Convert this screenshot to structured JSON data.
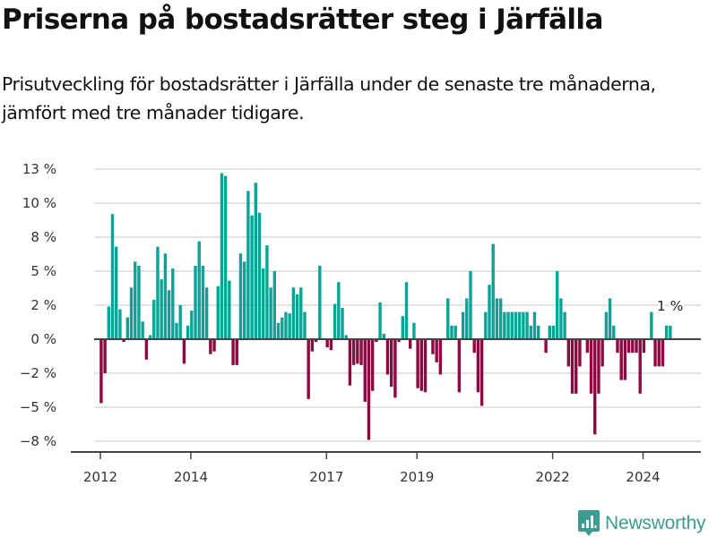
{
  "header": {
    "title": "Priserna på bostadsrätter steg i Järfälla",
    "subtitle": "Prisutveckling för bostadsrätter i Järfälla under de senaste tre månaderna, jämfört med tre månader tidigare."
  },
  "branding": {
    "logo_icon": "bar-chart-speech-bubble-icon",
    "name": "Newsworthy",
    "color": "#3c9c94"
  },
  "chart_data": {
    "type": "bar",
    "title": "Priserna på bostadsrätter steg i Järfälla",
    "xlabel": "",
    "ylabel": "",
    "unit": "%",
    "start_month": "2012-01",
    "frequency": "monthly",
    "ylim": [
      -9,
      13.5
    ],
    "y_ticks": [
      12.5,
      10,
      7.5,
      5,
      2.5,
      0,
      -2.5,
      -5,
      -7.5
    ],
    "y_tick_labels": [
      "13 %",
      "10 %",
      "8 %",
      "5 %",
      "2 %",
      "0 %",
      "−2 %",
      "−5 %",
      "−8 %"
    ],
    "x_ticks": [
      {
        "label": "2012",
        "month_index": 0
      },
      {
        "label": "2014",
        "month_index": 24
      },
      {
        "label": "2017",
        "month_index": 60
      },
      {
        "label": "2019",
        "month_index": 84
      },
      {
        "label": "2022",
        "month_index": 120
      },
      {
        "label": "2024",
        "month_index": 144
      }
    ],
    "grid": true,
    "colors": {
      "positive": "#0ba396",
      "negative": "#8c0a42",
      "grid": "#e2e2e2",
      "axis": "#444444"
    },
    "annotation": {
      "text": "1 %",
      "month_index": 151
    },
    "values": [
      -4.7,
      -2.5,
      2.4,
      9.2,
      6.8,
      2.2,
      -0.2,
      1.6,
      3.8,
      5.7,
      5.4,
      1.3,
      -1.5,
      0.3,
      2.9,
      6.8,
      4.4,
      6.3,
      3.6,
      5.2,
      1.2,
      2.5,
      -1.8,
      1.0,
      2.1,
      5.4,
      7.2,
      5.4,
      3.8,
      -1.1,
      -0.9,
      3.9,
      12.2,
      12.0,
      4.3,
      -1.9,
      -1.9,
      6.3,
      5.7,
      10.9,
      9.1,
      11.5,
      9.3,
      5.2,
      6.9,
      3.8,
      5.0,
      1.2,
      1.6,
      2.0,
      1.9,
      3.8,
      3.3,
      3.8,
      2.0,
      -4.4,
      -0.9,
      -0.2,
      5.4,
      0,
      -0.6,
      -0.8,
      2.6,
      4.2,
      2.3,
      0.3,
      -3.4,
      -1.9,
      -1.8,
      -1.9,
      -4.6,
      -7.4,
      -3.8,
      -0.2,
      2.7,
      0.4,
      -2.6,
      -3.5,
      -4.3,
      -0.2,
      1.7,
      4.2,
      -0.7,
      1.2,
      -3.6,
      -3.8,
      -3.9,
      0,
      -1.1,
      -1.7,
      -2.6,
      0,
      3.0,
      1.0,
      1.0,
      -3.9,
      2.0,
      3.0,
      5.0,
      -1.0,
      -3.9,
      -4.9,
      2.0,
      4.0,
      7.0,
      3.0,
      3.0,
      2.0,
      2.0,
      2.0,
      2.0,
      2.0,
      2.0,
      2.0,
      1.0,
      2.0,
      1.0,
      0,
      -1.0,
      1.0,
      1.0,
      5.0,
      3.0,
      2.0,
      -2.0,
      -4.0,
      -4.0,
      -2.0,
      0,
      -1.0,
      -4.0,
      -7.0,
      -4.0,
      -2.0,
      2.0,
      3.0,
      1.0,
      -1.0,
      -3.0,
      -3.0,
      -1.0,
      -1.0,
      -1.0,
      -4.0,
      -1.0,
      0,
      2.0,
      -2.0,
      -2.0,
      -2.0,
      1.0,
      1.0
    ]
  }
}
